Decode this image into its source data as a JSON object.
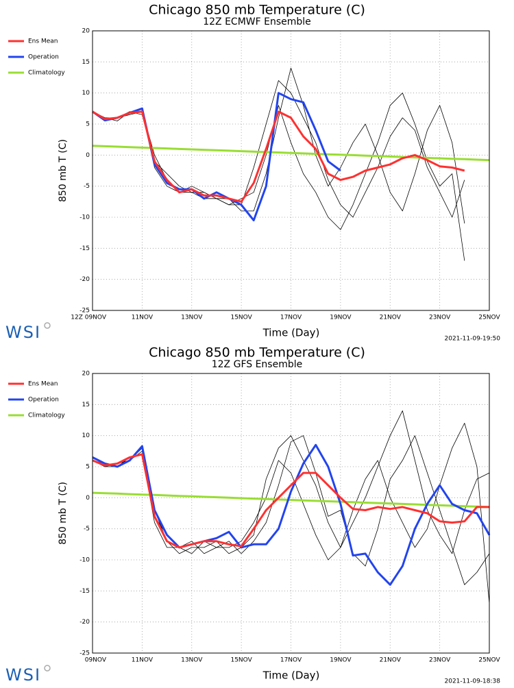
{
  "chart_data": [
    {
      "type": "line",
      "title": "Chicago 850 mb Temperature (C)",
      "subtitle": "12Z ECMWF Ensemble",
      "y_label": "850 mb T (C)",
      "x_label": "Time (Day)",
      "timestamp": "2021-11-09-19:50",
      "logo": "WSI",
      "x": [
        0,
        0.5,
        1,
        1.5,
        2,
        2.5,
        3,
        3.5,
        4,
        4.5,
        5,
        5.5,
        6,
        6.5,
        7,
        7.5,
        8,
        8.5,
        9,
        9.5,
        10,
        10.5,
        11,
        11.5,
        12,
        12.5,
        13,
        13.5,
        14,
        14.5,
        15,
        15.5,
        16
      ],
      "xlim": [
        0,
        16
      ],
      "xticks": [
        {
          "value": 0,
          "label": "12Z 09NOV"
        },
        {
          "value": 2,
          "label": "11NOV"
        },
        {
          "value": 4,
          "label": "13NOV"
        },
        {
          "value": 6,
          "label": "15NOV"
        },
        {
          "value": 8,
          "label": "17NOV"
        },
        {
          "value": 10,
          "label": "19NOV"
        },
        {
          "value": 12,
          "label": "21NOV"
        },
        {
          "value": 14,
          "label": "23NOV"
        },
        {
          "value": 16,
          "label": "25NOV"
        }
      ],
      "ylim": [
        -25,
        20
      ],
      "yticks": [
        20,
        15,
        10,
        5,
        0,
        -5,
        -10,
        -15,
        -20,
        -25
      ],
      "grid": true,
      "series": [
        {
          "name": "Ens Mean",
          "color": "#ff3030",
          "values": [
            7,
            5.8,
            6,
            6.8,
            7,
            -1,
            -4,
            -6,
            -5.5,
            -6.5,
            -6.5,
            -7,
            -7.5,
            -4.5,
            1,
            7,
            6,
            3,
            1,
            -3,
            -4,
            -3.5,
            -2.5,
            -2,
            -1.5,
            -0.5,
            0,
            -0.8,
            -1.8,
            -2,
            -2.5,
            null,
            null
          ]
        },
        {
          "name": "Operation",
          "color": "#2244ee",
          "values": [
            7,
            5.6,
            6,
            6.8,
            7.5,
            -1.5,
            -4.5,
            -5.5,
            -5.5,
            -7,
            -6,
            -7,
            -8,
            -10.5,
            -5,
            10,
            9,
            8.5,
            4,
            -1,
            -2.5,
            null,
            null,
            null,
            null,
            null,
            null,
            null,
            null,
            null,
            null,
            null,
            null
          ]
        },
        {
          "name": "Climatology",
          "color": "#99dd33",
          "values": [
            1.5,
            1.43,
            1.36,
            1.28,
            1.21,
            1.14,
            1.07,
            0.99,
            0.92,
            0.85,
            0.78,
            0.71,
            0.63,
            0.56,
            0.49,
            0.42,
            0.35,
            0.27,
            0.2,
            0.13,
            0.06,
            -0.01,
            -0.09,
            -0.16,
            -0.23,
            -0.3,
            -0.37,
            -0.45,
            -0.52,
            -0.59,
            -0.66,
            -0.73,
            -0.8
          ]
        },
        {
          "color": "#000000",
          "values": [
            7,
            6,
            6,
            7,
            7,
            0,
            -4,
            -6,
            -6,
            -7,
            -7,
            -8,
            -8,
            -2,
            5,
            12,
            10,
            6,
            2,
            -4,
            -8,
            -10,
            -6,
            -2,
            3,
            6,
            4,
            -2,
            -6,
            -10,
            -4,
            null,
            null
          ]
        },
        {
          "color": "#000000",
          "values": [
            7,
            5.5,
            6,
            6.5,
            7,
            -2,
            -5,
            -6,
            -5,
            -6,
            -7,
            -7,
            -9,
            -9,
            -3,
            6,
            14,
            8,
            0,
            -5,
            -2,
            2,
            5,
            0,
            -6,
            -9,
            -3,
            4,
            8,
            2,
            -11,
            null,
            null
          ]
        },
        {
          "color": "#000000",
          "values": [
            7,
            6,
            5.5,
            7,
            6.5,
            -1,
            -3,
            -5,
            -6,
            -6,
            -7,
            -8,
            -7,
            -6,
            0,
            8,
            2,
            -3,
            -6,
            -10,
            -12,
            -8,
            -3,
            2,
            8,
            10,
            5,
            -1,
            -5,
            -3,
            -17,
            null,
            null
          ]
        }
      ]
    },
    {
      "type": "line",
      "title": "Chicago 850 mb Temperature (C)",
      "subtitle": "12Z GFS Ensemble",
      "y_label": "850 mb T (C)",
      "x_label": "Time (Day)",
      "timestamp": "2021-11-09-18:38",
      "logo": "WSI",
      "x": [
        0,
        0.5,
        1,
        1.5,
        2,
        2.5,
        3,
        3.5,
        4,
        4.5,
        5,
        5.5,
        6,
        6.5,
        7,
        7.5,
        8,
        8.5,
        9,
        9.5,
        10,
        10.5,
        11,
        11.5,
        12,
        12.5,
        13,
        13.5,
        14,
        14.5,
        15,
        15.5,
        16
      ],
      "xlim": [
        0,
        16
      ],
      "xticks": [
        {
          "value": 0,
          "label": "09NOV"
        },
        {
          "value": 2,
          "label": "11NOV"
        },
        {
          "value": 4,
          "label": "13NOV"
        },
        {
          "value": 6,
          "label": "15NOV"
        },
        {
          "value": 8,
          "label": "17NOV"
        },
        {
          "value": 10,
          "label": "19NOV"
        },
        {
          "value": 12,
          "label": "21NOV"
        },
        {
          "value": 14,
          "label": "23NOV"
        },
        {
          "value": 16,
          "label": "25NOV"
        }
      ],
      "ylim": [
        -25,
        20
      ],
      "yticks": [
        20,
        15,
        10,
        5,
        0,
        -5,
        -10,
        -15,
        -20,
        -25
      ],
      "grid": true,
      "series": [
        {
          "name": "Ens Mean",
          "color": "#ff3030",
          "values": [
            6,
            5.2,
            5.5,
            6.5,
            7,
            -3,
            -7,
            -8,
            -7.5,
            -7,
            -7,
            -7.5,
            -7.8,
            -5,
            -2,
            0,
            2,
            4,
            4,
            2,
            0,
            -1.8,
            -2,
            -1.5,
            -1.8,
            -1.5,
            -2,
            -2.5,
            -3.8,
            -4,
            -3.8,
            -1.5,
            -1.5
          ]
        },
        {
          "name": "Operation",
          "color": "#2244ee",
          "values": [
            6.5,
            5.5,
            5,
            6,
            8.3,
            -2,
            -6,
            -8,
            -7.5,
            -7,
            -6.5,
            -5.5,
            -8,
            -7.5,
            -7.5,
            -5,
            1,
            5.5,
            8.5,
            5,
            -1,
            -9.3,
            -9,
            -12,
            -14,
            -11,
            -5,
            -1,
            2,
            -1,
            -2,
            -2.5,
            -6
          ]
        },
        {
          "name": "Climatology",
          "color": "#99dd33",
          "values": [
            0.8,
            0.73,
            0.66,
            0.58,
            0.51,
            0.44,
            0.37,
            0.29,
            0.22,
            0.15,
            0.08,
            0.01,
            -0.07,
            -0.14,
            -0.21,
            -0.28,
            -0.35,
            -0.43,
            -0.5,
            -0.57,
            -0.64,
            -0.71,
            -0.79,
            -0.86,
            -0.93,
            -1.0,
            -1.07,
            -1.15,
            -1.22,
            -1.29,
            -1.36,
            -1.43,
            -1.5
          ]
        },
        {
          "color": "#000000",
          "values": [
            6,
            5,
            5,
            6,
            8,
            -2,
            -7,
            -9,
            -8,
            -8,
            -7,
            -9,
            -8,
            -6,
            3,
            8,
            10,
            6,
            2,
            -4,
            -8,
            -4,
            0,
            5,
            10,
            14,
            6,
            -2,
            -6,
            -9,
            -2,
            3,
            4
          ]
        },
        {
          "color": "#000000",
          "values": [
            6,
            5.5,
            5,
            6.5,
            7,
            -4,
            -8,
            -8,
            -7,
            -9,
            -8,
            -7,
            -9,
            -7,
            -4,
            2,
            9,
            10,
            4,
            -3,
            -2,
            -9,
            -11,
            -5,
            3,
            6,
            10,
            4,
            -2,
            -8,
            -14,
            -12,
            -9
          ]
        },
        {
          "color": "#000000",
          "values": [
            6,
            5,
            5.5,
            6,
            7.5,
            -3,
            -6,
            -8,
            -9,
            -7,
            -8,
            -8,
            -7,
            -4,
            0,
            6,
            4,
            -1,
            -6,
            -10,
            -8,
            -2,
            3,
            6,
            0,
            -4,
            -8,
            -5,
            2,
            8,
            12,
            5,
            -17
          ]
        }
      ]
    }
  ]
}
